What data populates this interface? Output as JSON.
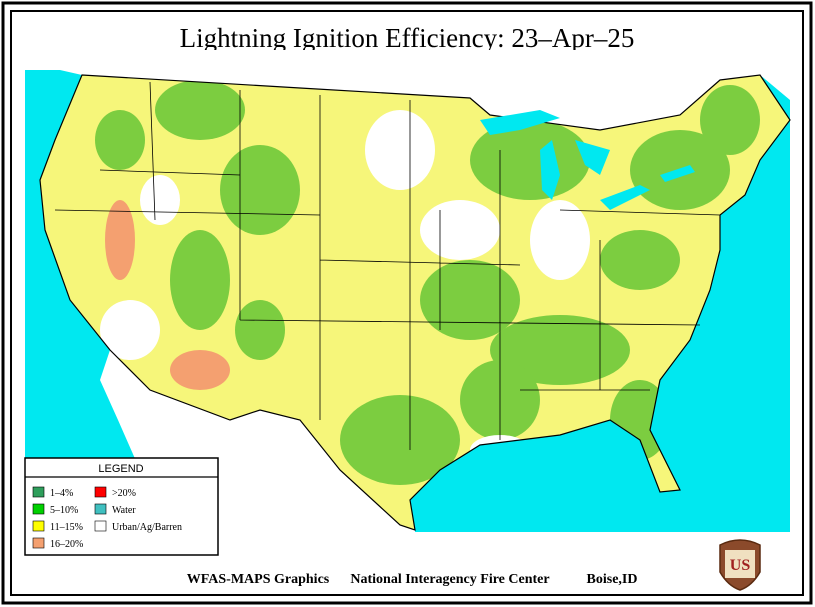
{
  "title": "Lightning Ignition Efficiency: 23–Apr–25",
  "legend": {
    "title": "LEGEND",
    "items": [
      {
        "label": "1–4%",
        "color": "#2e9e5b"
      },
      {
        "label": "5–10%",
        "color": "#00d000"
      },
      {
        "label": "11–15%",
        "color": "#ffff00"
      },
      {
        "label": "16–20%",
        "color": "#f4a070"
      },
      {
        "label": ">20%",
        "color": "#ff0000"
      },
      {
        "label": "Water",
        "color": "#40c0c0"
      },
      {
        "label": "Urban/Ag/Barren",
        "color": "#ffffff"
      }
    ]
  },
  "footer": [
    "WFAS-MAPS Graphics",
    "National Interagency Fire Center",
    "Boise,ID"
  ],
  "logo_text": "US"
}
